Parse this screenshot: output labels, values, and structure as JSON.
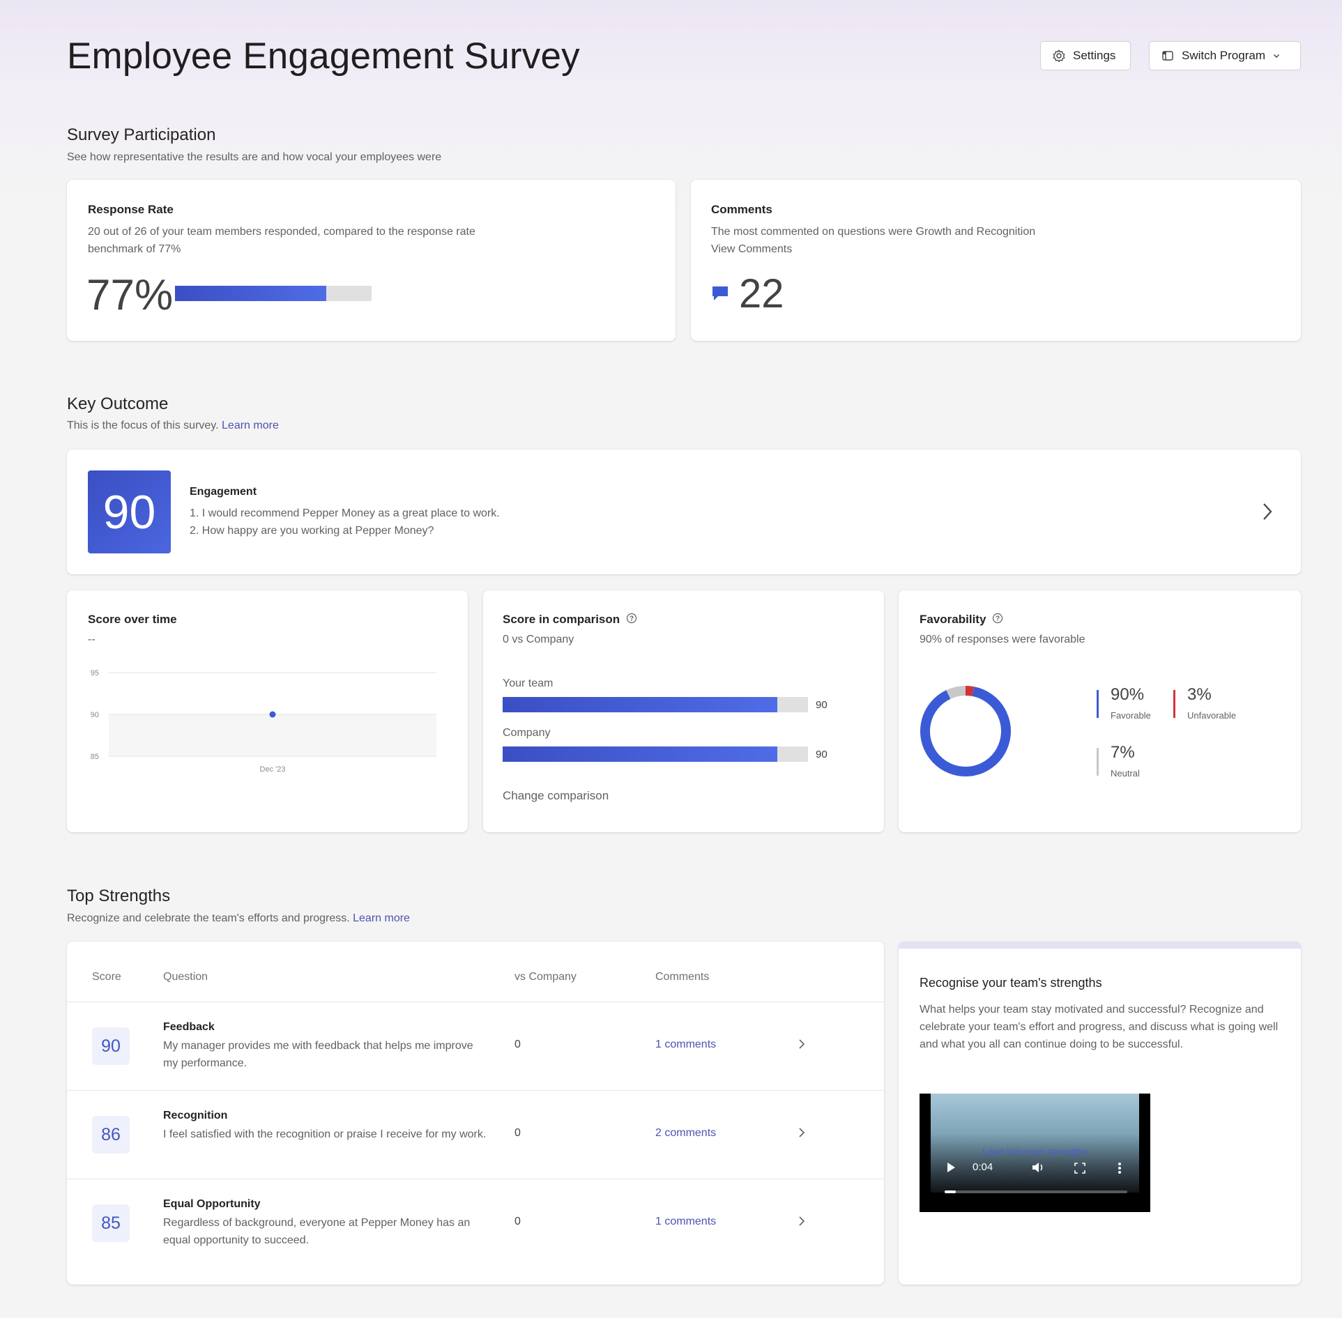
{
  "header": {
    "title": "Employee Engagement Survey",
    "settings_label": "Settings",
    "switch_label": "Switch Program"
  },
  "participation": {
    "title": "Survey Participation",
    "subtitle": "See how representative the results are and how vocal your employees were",
    "response": {
      "title": "Response Rate",
      "text_line1": "20 out of 26 of your team members responded, compared to the response rate",
      "text_line2": "benchmark of 77%",
      "value": "77%",
      "fraction": 0.77
    },
    "comments": {
      "title": "Comments",
      "text": "The most commented on questions were Growth and Recognition",
      "link": "View Comments",
      "count": "22"
    }
  },
  "key_outcome": {
    "title": "Key Outcome",
    "subtitle": "This is the focus of this survey.",
    "learn_more": "Learn more",
    "score": "90",
    "name": "Engagement",
    "q1": "1. I would recommend Pepper Money as a great place to work.",
    "q2": "2. How happy are you working at Pepper Money?"
  },
  "score_over_time": {
    "title": "Score over time",
    "subtitle": "--"
  },
  "comparison": {
    "title": "Score in comparison",
    "subtitle": "0 vs Company",
    "team_label": "Your team",
    "team_value": "90",
    "company_label": "Company",
    "company_value": "90",
    "change_link": "Change comparison"
  },
  "favorability": {
    "title": "Favorability",
    "subtitle": "90% of responses were favorable",
    "favorable_pct": "90%",
    "favorable_label": "Favorable",
    "unfavorable_pct": "3%",
    "unfavorable_label": "Unfavorable",
    "neutral_pct": "7%",
    "neutral_label": "Neutral",
    "colors": {
      "favorable": "#3b5bd6",
      "unfavorable": "#d13438",
      "neutral": "#c8c8c8"
    }
  },
  "chart_data": {
    "type": "scatter",
    "title": "",
    "xlabel": "",
    "ylabel": "",
    "x": [
      "Dec '23"
    ],
    "series": [
      {
        "values": [
          90
        ]
      }
    ],
    "ylim": [
      85,
      95
    ],
    "y_ticks": [
      "95",
      "90",
      "85"
    ],
    "grid": true
  },
  "strengths": {
    "title": "Top Strengths",
    "subtitle": "Recognize and celebrate the team's efforts and progress.",
    "learn_more": "Learn more",
    "headers": {
      "score": "Score",
      "question": "Question",
      "vs": "vs Company",
      "comments": "Comments"
    },
    "rows": [
      {
        "score": "90",
        "title": "Feedback",
        "desc": "My manager provides me with feedback that helps me improve my performance.",
        "vs": "0",
        "comments": "1 comments"
      },
      {
        "score": "86",
        "title": "Recognition",
        "desc": "I feel satisfied with the recognition or praise I receive for my work.",
        "vs": "0",
        "comments": "2 comments"
      },
      {
        "score": "85",
        "title": "Equal Opportunity",
        "desc": "Regardless of background, everyone at Pepper Money has an equal opportunity to succeed.",
        "vs": "0",
        "comments": "1 comments"
      }
    ]
  },
  "recognise": {
    "title": "Recognise your team's strengths",
    "text": "What helps your team stay motivated and successful? Recognize and celebrate your team's effort and progress, and discuss what is going well and what you all can continue doing to be successful.",
    "video_caption": "Lean into your strengths",
    "video_time": "0:04"
  }
}
